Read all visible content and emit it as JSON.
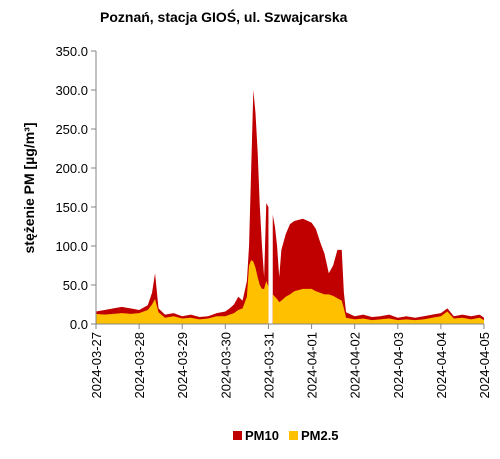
{
  "chart_data": {
    "type": "area",
    "title": "Poznań, stacja GIOŚ, ul. Szwajcarska",
    "y_label": "stężenie PM [µg/m³]",
    "legend": "bottom",
    "grid": false,
    "x": [
      0,
      0.2,
      0.4,
      0.6,
      0.8,
      1.0,
      1.2,
      1.3,
      1.37,
      1.45,
      1.6,
      1.8,
      2.0,
      2.2,
      2.4,
      2.6,
      2.8,
      3.0,
      3.1,
      3.2,
      3.3,
      3.4,
      3.5,
      3.55,
      3.6,
      3.65,
      3.7,
      3.75,
      3.8,
      3.85,
      3.9,
      3.95,
      4.0,
      4.05,
      4.1,
      4.15,
      4.2,
      4.25,
      4.3,
      4.4,
      4.5,
      4.6,
      4.8,
      5.0,
      5.1,
      5.2,
      5.3,
      5.4,
      5.5,
      5.6,
      5.7,
      5.75,
      5.8,
      6.0,
      6.2,
      6.4,
      6.6,
      6.8,
      7.0,
      7.2,
      7.4,
      7.6,
      7.8,
      8.0,
      8.15,
      8.3,
      8.5,
      8.7,
      8.9,
      9.0
    ],
    "xlim": [
      0,
      9
    ],
    "xticks": [
      {
        "value": 0,
        "label": "2024-03-27"
      },
      {
        "value": 1,
        "label": "2024-03-28"
      },
      {
        "value": 2,
        "label": "2024-03-29"
      },
      {
        "value": 3,
        "label": "2024-03-30"
      },
      {
        "value": 4,
        "label": "2024-03-31"
      },
      {
        "value": 5,
        "label": "2024-04-01"
      },
      {
        "value": 6,
        "label": "2024-04-02"
      },
      {
        "value": 7,
        "label": "2024-04-03"
      },
      {
        "value": 8,
        "label": "2024-04-04"
      },
      {
        "value": 9,
        "label": "2024-04-05"
      }
    ],
    "ylim": [
      0,
      350
    ],
    "yticks": [
      {
        "value": 0,
        "label": "0.0"
      },
      {
        "value": 50,
        "label": "50.0"
      },
      {
        "value": 100,
        "label": "100.0"
      },
      {
        "value": 150,
        "label": "150.0"
      },
      {
        "value": 200,
        "label": "200.0"
      },
      {
        "value": 250,
        "label": "250.0"
      },
      {
        "value": 300,
        "label": "300.0"
      },
      {
        "value": 350,
        "label": "350.0"
      }
    ],
    "series": [
      {
        "name": "PM10",
        "color": "#c00000",
        "values": [
          16,
          18,
          20,
          22,
          20,
          18,
          24,
          40,
          65,
          20,
          12,
          14,
          10,
          12,
          9,
          10,
          14,
          16,
          20,
          25,
          35,
          30,
          55,
          100,
          200,
          300,
          270,
          220,
          150,
          100,
          60,
          155,
          150,
          null,
          140,
          125,
          100,
          60,
          95,
          115,
          128,
          132,
          135,
          130,
          122,
          105,
          90,
          65,
          75,
          95,
          95,
          40,
          15,
          10,
          12,
          9,
          10,
          12,
          8,
          10,
          8,
          10,
          12,
          14,
          20,
          10,
          12,
          10,
          12,
          8
        ]
      },
      {
        "name": "PM2.5",
        "color": "#ffc000",
        "values": [
          13,
          12,
          13,
          14,
          13,
          14,
          18,
          25,
          32,
          15,
          8,
          10,
          7,
          8,
          6,
          7,
          10,
          10,
          12,
          14,
          18,
          20,
          35,
          75,
          82,
          80,
          72,
          60,
          50,
          45,
          45,
          55,
          48,
          null,
          38,
          35,
          32,
          28,
          30,
          35,
          38,
          42,
          45,
          45,
          42,
          40,
          38,
          38,
          36,
          33,
          30,
          20,
          8,
          6,
          7,
          5,
          6,
          7,
          5,
          6,
          5,
          6,
          8,
          10,
          16,
          7,
          8,
          6,
          8,
          5
        ]
      }
    ]
  }
}
